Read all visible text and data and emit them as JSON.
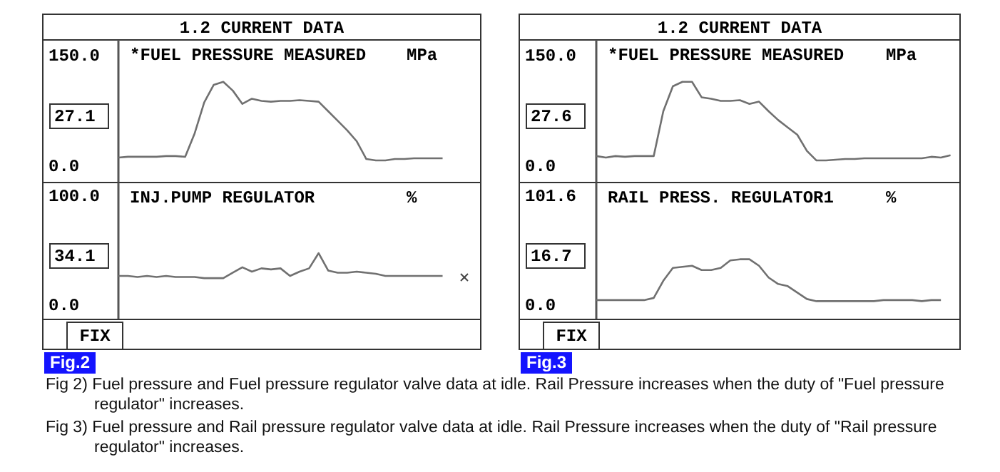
{
  "chart_data": [
    {
      "type": "line",
      "title": "*FUEL PRESSURE MEASURED",
      "ylabel": "MPa",
      "tick_labels": "y",
      "ylim": [
        -22,
        172
      ],
      "yticks": [
        {
          "value": 0,
          "label": "0.0"
        },
        {
          "value": 150,
          "label": "150.0"
        }
      ],
      "color": "#707070",
      "annotations": [
        "1.2 CURRENT DATA",
        "27.1"
      ],
      "categories": [
        null,
        null,
        null,
        null,
        null,
        null,
        null,
        null,
        null,
        null,
        null,
        null,
        null,
        null,
        null,
        null,
        null,
        null,
        null,
        null,
        null,
        null,
        null,
        null,
        null,
        null,
        null,
        null,
        null,
        null,
        null,
        null,
        null,
        null,
        null,
        null,
        null,
        null,
        null
      ],
      "values": [
        12,
        13,
        13,
        13,
        13,
        14,
        14,
        13,
        45,
        87,
        111,
        115,
        103,
        85,
        92,
        89,
        88,
        89,
        89,
        90,
        89,
        88,
        75,
        62,
        49,
        34,
        10,
        8,
        8,
        10,
        10,
        11,
        11,
        11,
        11,
        null,
        null,
        null,
        null
      ]
    },
    {
      "type": "line",
      "title": "INJ.PUMP REGULATOR",
      "ylabel": "%",
      "tick_labels": "y",
      "ylim": [
        -13,
        113
      ],
      "yticks": [
        {
          "value": 0,
          "label": "0.0"
        },
        {
          "value": 100,
          "label": "100.0"
        }
      ],
      "color": "#707070",
      "annotations": [
        "34.1",
        "FIX",
        "Fig.2",
        "Fig 2) Fuel pressure and Fuel pressure regulator valve data at idle. Rail Pressure increases when the duty of \"Fuel pressure regulator\" increases."
      ],
      "categories": [
        null,
        null,
        null,
        null,
        null,
        null,
        null,
        null,
        null,
        null,
        null,
        null,
        null,
        null,
        null,
        null,
        null,
        null,
        null,
        null,
        null,
        null,
        null,
        null,
        null,
        null,
        null,
        null,
        null,
        null,
        null,
        null,
        null,
        null,
        null,
        null,
        null,
        null,
        null
      ],
      "values": [
        27,
        27,
        26,
        27,
        26,
        27,
        26,
        26,
        26,
        25,
        25,
        25,
        30,
        35,
        31,
        34,
        33,
        34,
        27,
        31,
        34,
        48,
        32,
        30,
        30,
        31,
        30,
        29,
        27,
        27,
        27,
        27,
        27,
        27,
        27,
        null,
        null,
        null,
        null
      ]
    },
    {
      "type": "line",
      "title": "*FUEL PRESSURE MEASURED",
      "ylabel": "MPa",
      "tick_labels": "y",
      "ylim": [
        -22,
        172
      ],
      "yticks": [
        {
          "value": 0,
          "label": "0.0"
        },
        {
          "value": 150,
          "label": "150.0"
        }
      ],
      "color": "#707070",
      "annotations": [
        "1.2 CURRENT DATA",
        "27.6"
      ],
      "categories": [
        null,
        null,
        null,
        null,
        null,
        null,
        null,
        null,
        null,
        null,
        null,
        null,
        null,
        null,
        null,
        null,
        null,
        null,
        null,
        null,
        null,
        null,
        null,
        null,
        null,
        null,
        null,
        null,
        null,
        null,
        null,
        null,
        null,
        null,
        null,
        null,
        null,
        null,
        null
      ],
      "values": [
        14,
        12,
        14,
        13,
        14,
        14,
        14,
        75,
        109,
        115,
        115,
        94,
        92,
        89,
        89,
        90,
        85,
        88,
        75,
        63,
        53,
        43,
        21,
        8,
        8,
        9,
        10,
        10,
        11,
        11,
        11,
        11,
        11,
        11,
        11,
        13,
        12,
        15,
        null
      ]
    },
    {
      "type": "line",
      "title": "RAIL PRESS. REGULATOR1",
      "ylabel": "%",
      "tick_labels": "y",
      "ylim": [
        -13,
        114.5
      ],
      "yticks": [
        {
          "value": 0,
          "label": "0.0"
        },
        {
          "value": 101.6,
          "label": "101.6"
        }
      ],
      "color": "#707070",
      "annotations": [
        "16.7",
        "FIX",
        "Fig.3",
        "Fig 3) Fuel pressure and Rail pressure regulator valve data at idle. Rail Pressure increases when the duty of \"Rail pressure regulator\" increases."
      ],
      "categories": [
        null,
        null,
        null,
        null,
        null,
        null,
        null,
        null,
        null,
        null,
        null,
        null,
        null,
        null,
        null,
        null,
        null,
        null,
        null,
        null,
        null,
        null,
        null,
        null,
        null,
        null,
        null,
        null,
        null,
        null,
        null,
        null,
        null,
        null,
        null,
        null,
        null,
        null,
        null
      ],
      "values": [
        5,
        5,
        5,
        5,
        5,
        5,
        7,
        23,
        35,
        36,
        37,
        33,
        33,
        35,
        42,
        43,
        43,
        37,
        26,
        20,
        18,
        12,
        6,
        4,
        4,
        4,
        4,
        4,
        4,
        4,
        5,
        5,
        5,
        5,
        4,
        5,
        5,
        null,
        null
      ]
    }
  ]
}
